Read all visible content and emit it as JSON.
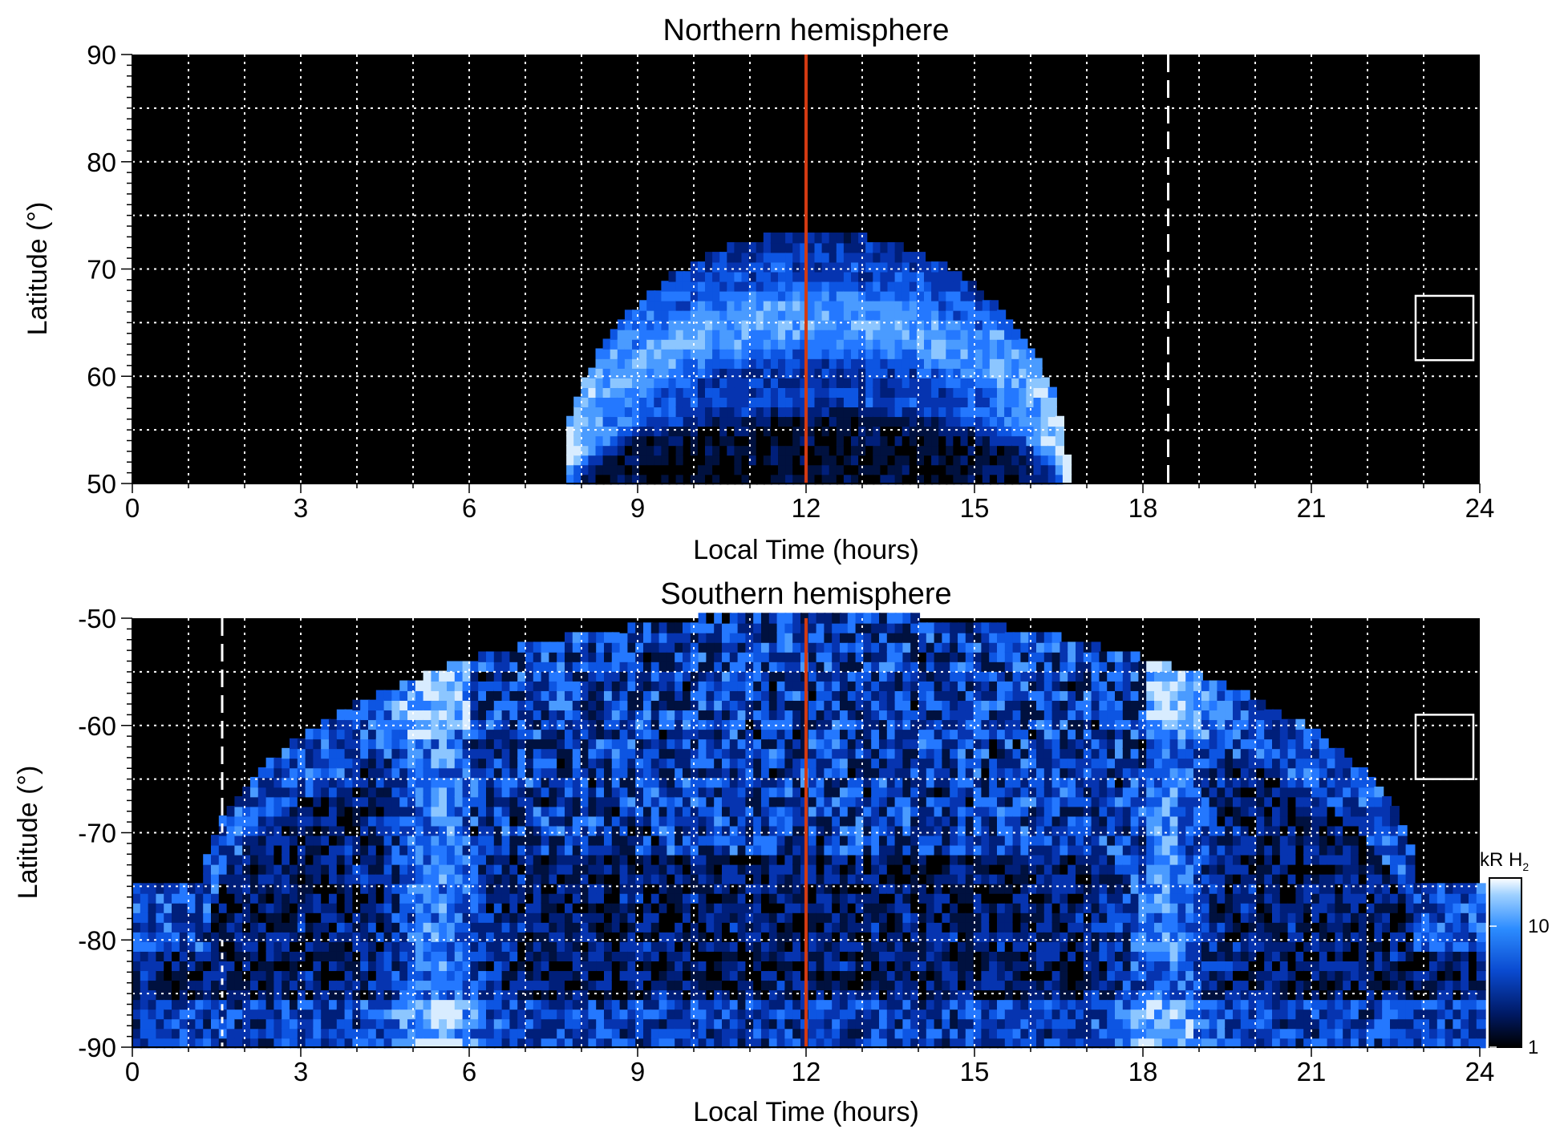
{
  "chart_data": [
    {
      "type": "heatmap",
      "title": "Northern hemisphere",
      "xlabel": "Local Time (hours)",
      "ylabel": "Latitude (°)",
      "xlim": [
        0,
        24
      ],
      "ylim": [
        50,
        90
      ],
      "xticks": [
        "0",
        "3",
        "6",
        "9",
        "12",
        "15",
        "18",
        "21",
        "24"
      ],
      "yticks": [
        "50",
        "60",
        "70",
        "80",
        "90"
      ],
      "grid": true,
      "background": "#000000",
      "noon_line_x": 12,
      "noon_line_color": "#d23a12",
      "dashed_line_x": 18.45,
      "emission_region": {
        "lt_range": [
          7.6,
          16.6
        ],
        "peak_latitude": 73,
        "main_oval_latitude": 65,
        "inner_ring_latitude": 57.5
      },
      "reference_box": {
        "lt_range": [
          23.0,
          24.0
        ],
        "lat_range": [
          61.5,
          67.5
        ]
      }
    },
    {
      "type": "heatmap",
      "title": "Southern hemisphere",
      "xlabel": "Local Time (hours)",
      "ylabel": "Latitude (°)",
      "xlim": [
        0,
        24
      ],
      "ylim": [
        -90,
        -50
      ],
      "xticks": [
        "0",
        "3",
        "6",
        "9",
        "12",
        "15",
        "18",
        "21",
        "24"
      ],
      "yticks": [
        "-90",
        "-80",
        "-70",
        "-60",
        "-50"
      ],
      "grid": true,
      "background": "#000000",
      "noon_line_x": 12,
      "noon_line_color": "#d23a12",
      "dashed_line_x": 1.6,
      "emission_region": {
        "lt_range": [
          0,
          24
        ],
        "min_latitude": -75,
        "main_oval_lt_dawn": 5.4,
        "main_oval_lt_dusk": 18.3
      },
      "reference_box": {
        "lt_range": [
          23.0,
          24.0
        ],
        "lat_range": [
          -65,
          -59
        ]
      },
      "colorbar": {
        "label": "kR H",
        "label_subscript": "2",
        "scale": "log",
        "range": [
          1,
          25
        ],
        "tick_labels": [
          "1",
          "10"
        ],
        "tick_values": [
          1,
          10
        ],
        "colors": [
          "#000000",
          "#001a66",
          "#0a4ad0",
          "#2c8cff",
          "#9ed0ff",
          "#ffffff"
        ]
      }
    }
  ]
}
